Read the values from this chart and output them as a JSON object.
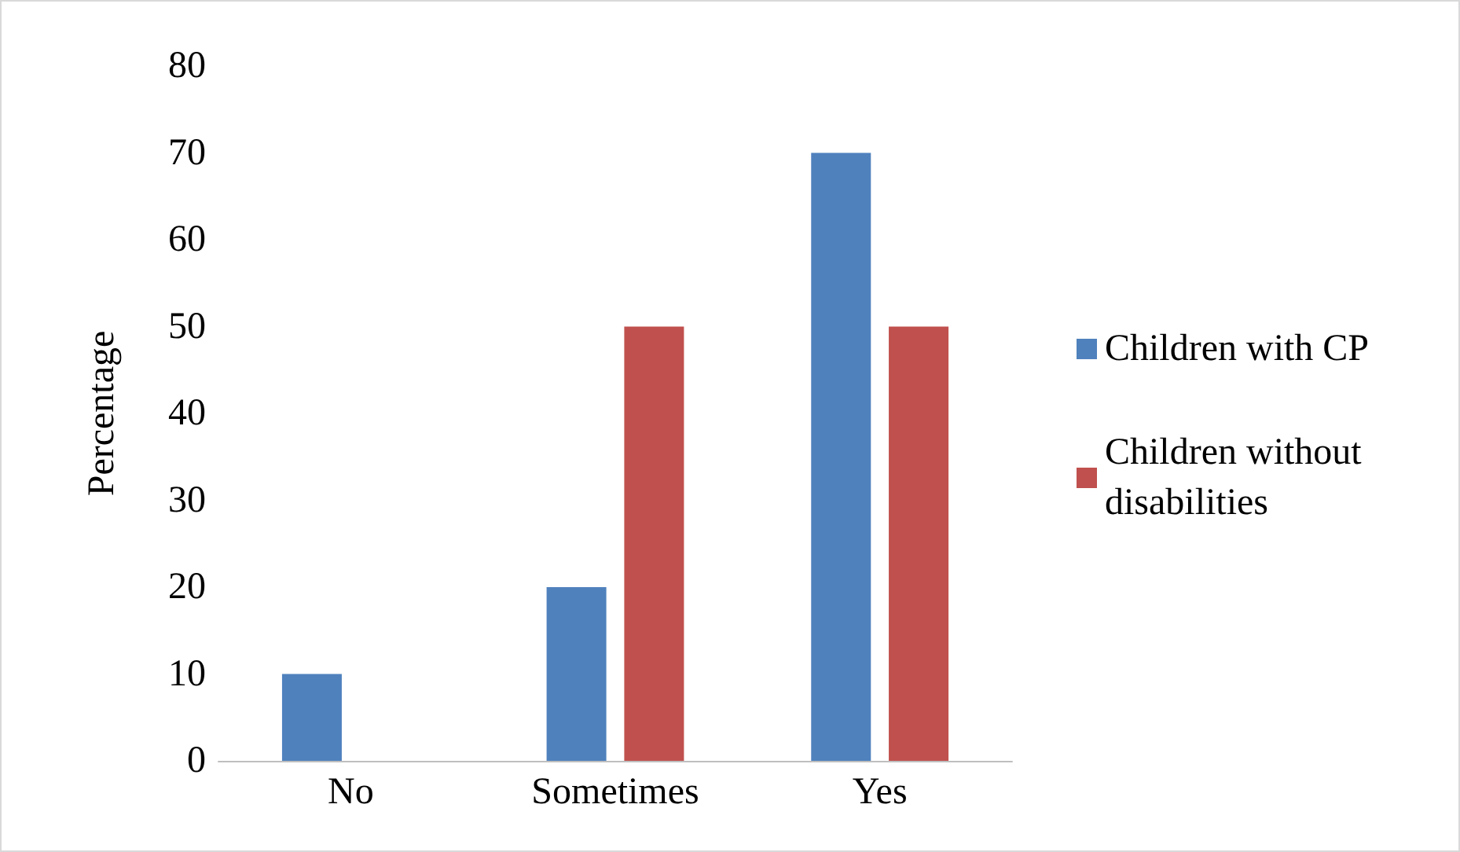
{
  "chart_data": {
    "type": "bar",
    "ylabel": "Percentage",
    "categories": [
      "No",
      "Sometimes",
      "Yes"
    ],
    "series": [
      {
        "name": "Children with CP",
        "color": "#4f81bd",
        "values": [
          10,
          20,
          70
        ]
      },
      {
        "name": "Children without disabilities",
        "color": "#c0504d",
        "values": [
          0,
          50,
          50
        ]
      }
    ],
    "ylim": [
      0,
      80
    ],
    "yticks": [
      0,
      10,
      20,
      30,
      40,
      50,
      60,
      70,
      80
    ],
    "grid": false,
    "legend": "right"
  }
}
